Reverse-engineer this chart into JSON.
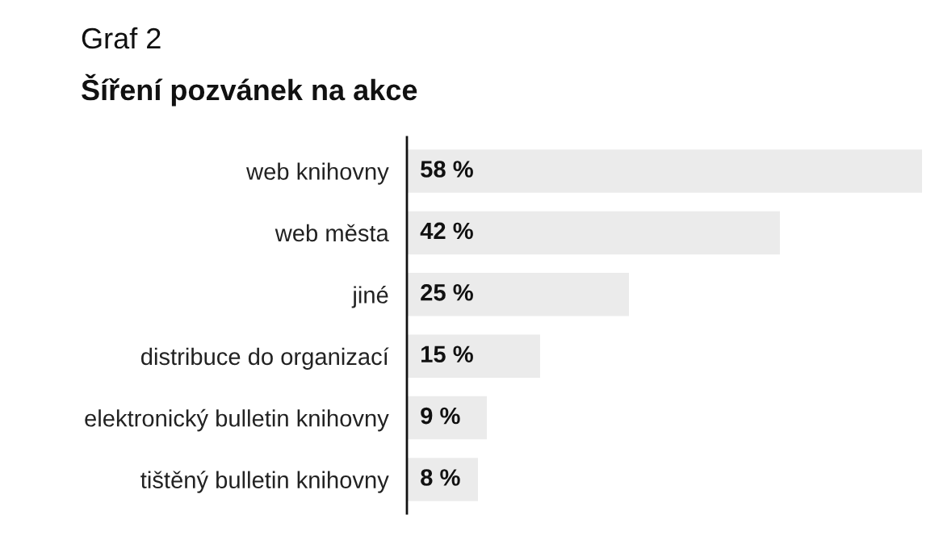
{
  "chart_data": {
    "type": "bar",
    "orientation": "horizontal",
    "title": "Graf 2",
    "subtitle": "Šíření pozvánek na akce",
    "categories": [
      "web knihovny",
      "web města",
      "jiné",
      "distribuce do organizací",
      "elektronický bulletin knihovny",
      "tištěný bulletin knihovny"
    ],
    "values": [
      58,
      42,
      25,
      15,
      9,
      8
    ],
    "value_labels": [
      "58 %",
      "42 %",
      "25 %",
      "15 %",
      "9 %",
      "8 %"
    ],
    "color": "#ebebeb",
    "grid": false,
    "legend": false
  }
}
